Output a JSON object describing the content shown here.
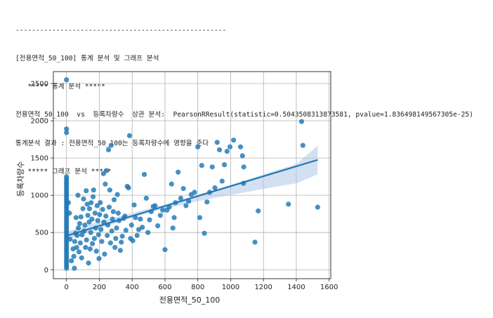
{
  "log_lines": [
    "----------------------------------------------------",
    "[전용면적_50_100] 통계 분석 및 그래프 분석",
    "   ***** 통계 분석 *****",
    "전용면적_50_100  vs  등록차량수  상관 분석:  PearsonRResult(statistic=0.5043508313873581, pvalue=1.836498149567305e-25)",
    "통계분석 결과 : 전용면적_50_100는 등록차량수에 영향을 준다",
    "   ***** 그래프 분석 *****"
  ],
  "chart_data": {
    "type": "scatter",
    "xlabel": "전용면적_50_100",
    "ylabel": "등록차량수",
    "xlim": [
      -80,
      1610
    ],
    "ylim": [
      -120,
      2660
    ],
    "xticks": [
      0,
      200,
      400,
      600,
      800,
      1000,
      1200,
      1400,
      1600
    ],
    "yticks": [
      0,
      500,
      1000,
      1500,
      2000,
      2500
    ],
    "grid": true,
    "colors": {
      "points": "#1f77b4",
      "line": "#1f77b4",
      "band": "#aec7e8"
    },
    "regression": {
      "x": [
        0,
        1530
      ],
      "y": [
        455,
        1475
      ]
    },
    "ci_band": {
      "x": [
        0,
        200,
        400,
        600,
        800,
        1000,
        1200,
        1400,
        1530
      ],
      "lower": [
        400,
        555,
        700,
        820,
        920,
        1005,
        1085,
        1160,
        1280
      ],
      "upper": [
        510,
        650,
        760,
        880,
        1010,
        1140,
        1280,
        1420,
        1665
      ]
    },
    "points": [
      [
        0,
        2550
      ],
      [
        0,
        1890
      ],
      [
        0,
        1840
      ],
      [
        0,
        1250
      ],
      [
        0,
        1220
      ],
      [
        0,
        1190
      ],
      [
        0,
        1160
      ],
      [
        0,
        1130
      ],
      [
        0,
        1100
      ],
      [
        0,
        1070
      ],
      [
        0,
        1040
      ],
      [
        0,
        1010
      ],
      [
        0,
        980
      ],
      [
        0,
        950
      ],
      [
        0,
        920
      ],
      [
        0,
        890
      ],
      [
        0,
        860
      ],
      [
        0,
        830
      ],
      [
        0,
        800
      ],
      [
        0,
        770
      ],
      [
        0,
        740
      ],
      [
        0,
        710
      ],
      [
        0,
        680
      ],
      [
        0,
        650
      ],
      [
        0,
        620
      ],
      [
        0,
        590
      ],
      [
        0,
        560
      ],
      [
        0,
        530
      ],
      [
        0,
        500
      ],
      [
        0,
        470
      ],
      [
        0,
        440
      ],
      [
        0,
        410
      ],
      [
        0,
        380
      ],
      [
        0,
        350
      ],
      [
        0,
        320
      ],
      [
        0,
        290
      ],
      [
        0,
        260
      ],
      [
        0,
        230
      ],
      [
        0,
        200
      ],
      [
        0,
        170
      ],
      [
        0,
        140
      ],
      [
        0,
        110
      ],
      [
        0,
        80
      ],
      [
        0,
        50
      ],
      [
        0,
        20
      ],
      [
        12,
        900
      ],
      [
        18,
        760
      ],
      [
        22,
        410
      ],
      [
        30,
        120
      ],
      [
        40,
        280
      ],
      [
        45,
        180
      ],
      [
        48,
        20
      ],
      [
        50,
        380
      ],
      [
        55,
        490
      ],
      [
        58,
        700
      ],
      [
        62,
        300
      ],
      [
        65,
        460
      ],
      [
        70,
        1000
      ],
      [
        72,
        560
      ],
      [
        76,
        240
      ],
      [
        80,
        620
      ],
      [
        84,
        360
      ],
      [
        88,
        710
      ],
      [
        92,
        160
      ],
      [
        95,
        470
      ],
      [
        100,
        820
      ],
      [
        104,
        950
      ],
      [
        108,
        520
      ],
      [
        112,
        600
      ],
      [
        116,
        300
      ],
      [
        120,
        1060
      ],
      [
        122,
        400
      ],
      [
        126,
        880
      ],
      [
        130,
        730
      ],
      [
        134,
        90
      ],
      [
        138,
        640
      ],
      [
        140,
        820
      ],
      [
        144,
        280
      ],
      [
        148,
        500
      ],
      [
        150,
        900
      ],
      [
        155,
        680
      ],
      [
        158,
        350
      ],
      [
        162,
        980
      ],
      [
        165,
        1070
      ],
      [
        170,
        420
      ],
      [
        174,
        760
      ],
      [
        178,
        560
      ],
      [
        182,
        250
      ],
      [
        186,
        860
      ],
      [
        190,
        660
      ],
      [
        195,
        470
      ],
      [
        198,
        150
      ],
      [
        202,
        740
      ],
      [
        206,
        900
      ],
      [
        210,
        540
      ],
      [
        215,
        380
      ],
      [
        220,
        810
      ],
      [
        225,
        1290
      ],
      [
        228,
        640
      ],
      [
        232,
        210
      ],
      [
        236,
        1150
      ],
      [
        240,
        720
      ],
      [
        244,
        1330
      ],
      [
        248,
        460
      ],
      [
        252,
        600
      ],
      [
        256,
        1610
      ],
      [
        260,
        840
      ],
      [
        264,
        1070
      ],
      [
        268,
        360
      ],
      [
        272,
        1670
      ],
      [
        276,
        520
      ],
      [
        280,
        680
      ],
      [
        285,
        780
      ],
      [
        290,
        940
      ],
      [
        295,
        300
      ],
      [
        300,
        420
      ],
      [
        305,
        560
      ],
      [
        310,
        1010
      ],
      [
        315,
        760
      ],
      [
        320,
        660
      ],
      [
        328,
        260
      ],
      [
        334,
        370
      ],
      [
        340,
        450
      ],
      [
        348,
        690
      ],
      [
        356,
        720
      ],
      [
        362,
        530
      ],
      [
        370,
        1120
      ],
      [
        378,
        1100
      ],
      [
        384,
        1800
      ],
      [
        390,
        420
      ],
      [
        396,
        600
      ],
      [
        404,
        390
      ],
      [
        412,
        870
      ],
      [
        420,
        700
      ],
      [
        430,
        460
      ],
      [
        440,
        540
      ],
      [
        450,
        680
      ],
      [
        462,
        570
      ],
      [
        474,
        1280
      ],
      [
        486,
        960
      ],
      [
        496,
        500
      ],
      [
        506,
        670
      ],
      [
        516,
        780
      ],
      [
        528,
        850
      ],
      [
        540,
        860
      ],
      [
        556,
        590
      ],
      [
        572,
        730
      ],
      [
        586,
        800
      ],
      [
        600,
        270
      ],
      [
        612,
        800
      ],
      [
        626,
        840
      ],
      [
        640,
        1150
      ],
      [
        648,
        560
      ],
      [
        656,
        700
      ],
      [
        664,
        900
      ],
      [
        680,
        1310
      ],
      [
        696,
        960
      ],
      [
        712,
        1090
      ],
      [
        728,
        860
      ],
      [
        744,
        920
      ],
      [
        760,
        1010
      ],
      [
        780,
        1040
      ],
      [
        800,
        1650
      ],
      [
        812,
        700
      ],
      [
        824,
        1400
      ],
      [
        840,
        490
      ],
      [
        856,
        910
      ],
      [
        872,
        1040
      ],
      [
        888,
        1380
      ],
      [
        904,
        1100
      ],
      [
        918,
        1710
      ],
      [
        932,
        1610
      ],
      [
        948,
        1190
      ],
      [
        962,
        1410
      ],
      [
        978,
        1590
      ],
      [
        996,
        1650
      ],
      [
        1018,
        1740
      ],
      [
        1060,
        1650
      ],
      [
        1072,
        1530
      ],
      [
        1080,
        1380
      ],
      [
        1078,
        1160
      ],
      [
        1148,
        370
      ],
      [
        1168,
        790
      ],
      [
        1352,
        880
      ],
      [
        1432,
        1990
      ],
      [
        1440,
        1670
      ],
      [
        1530,
        840
      ]
    ]
  }
}
